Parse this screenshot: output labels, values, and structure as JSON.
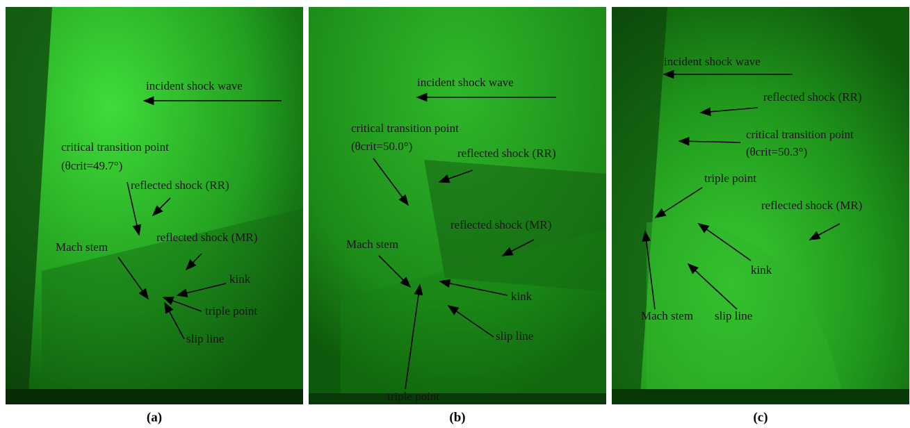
{
  "panels": [
    {
      "caption": "(a)",
      "labels": [
        "incident shock wave",
        "critical transition point",
        "(θcrit=49.7°)",
        "reflected shock (RR)",
        "reflected shock (MR)",
        "Mach stem",
        "kink",
        "triple point",
        "slip line"
      ]
    },
    {
      "caption": "(b)",
      "labels": [
        "incident shock wave",
        "critical transition point",
        "(θcrit=50.0°)",
        "reflected shock (RR)",
        "reflected shock (MR)",
        "Mach stem",
        "kink",
        "slip line",
        "triple point"
      ]
    },
    {
      "caption": "(c)",
      "labels": [
        "incident shock wave",
        "reflected shock (RR)",
        "critical transition point",
        "(θcrit=50.3°)",
        "triple point",
        "reflected shock (MR)",
        "kink",
        "Mach stem",
        "slip line"
      ]
    }
  ]
}
